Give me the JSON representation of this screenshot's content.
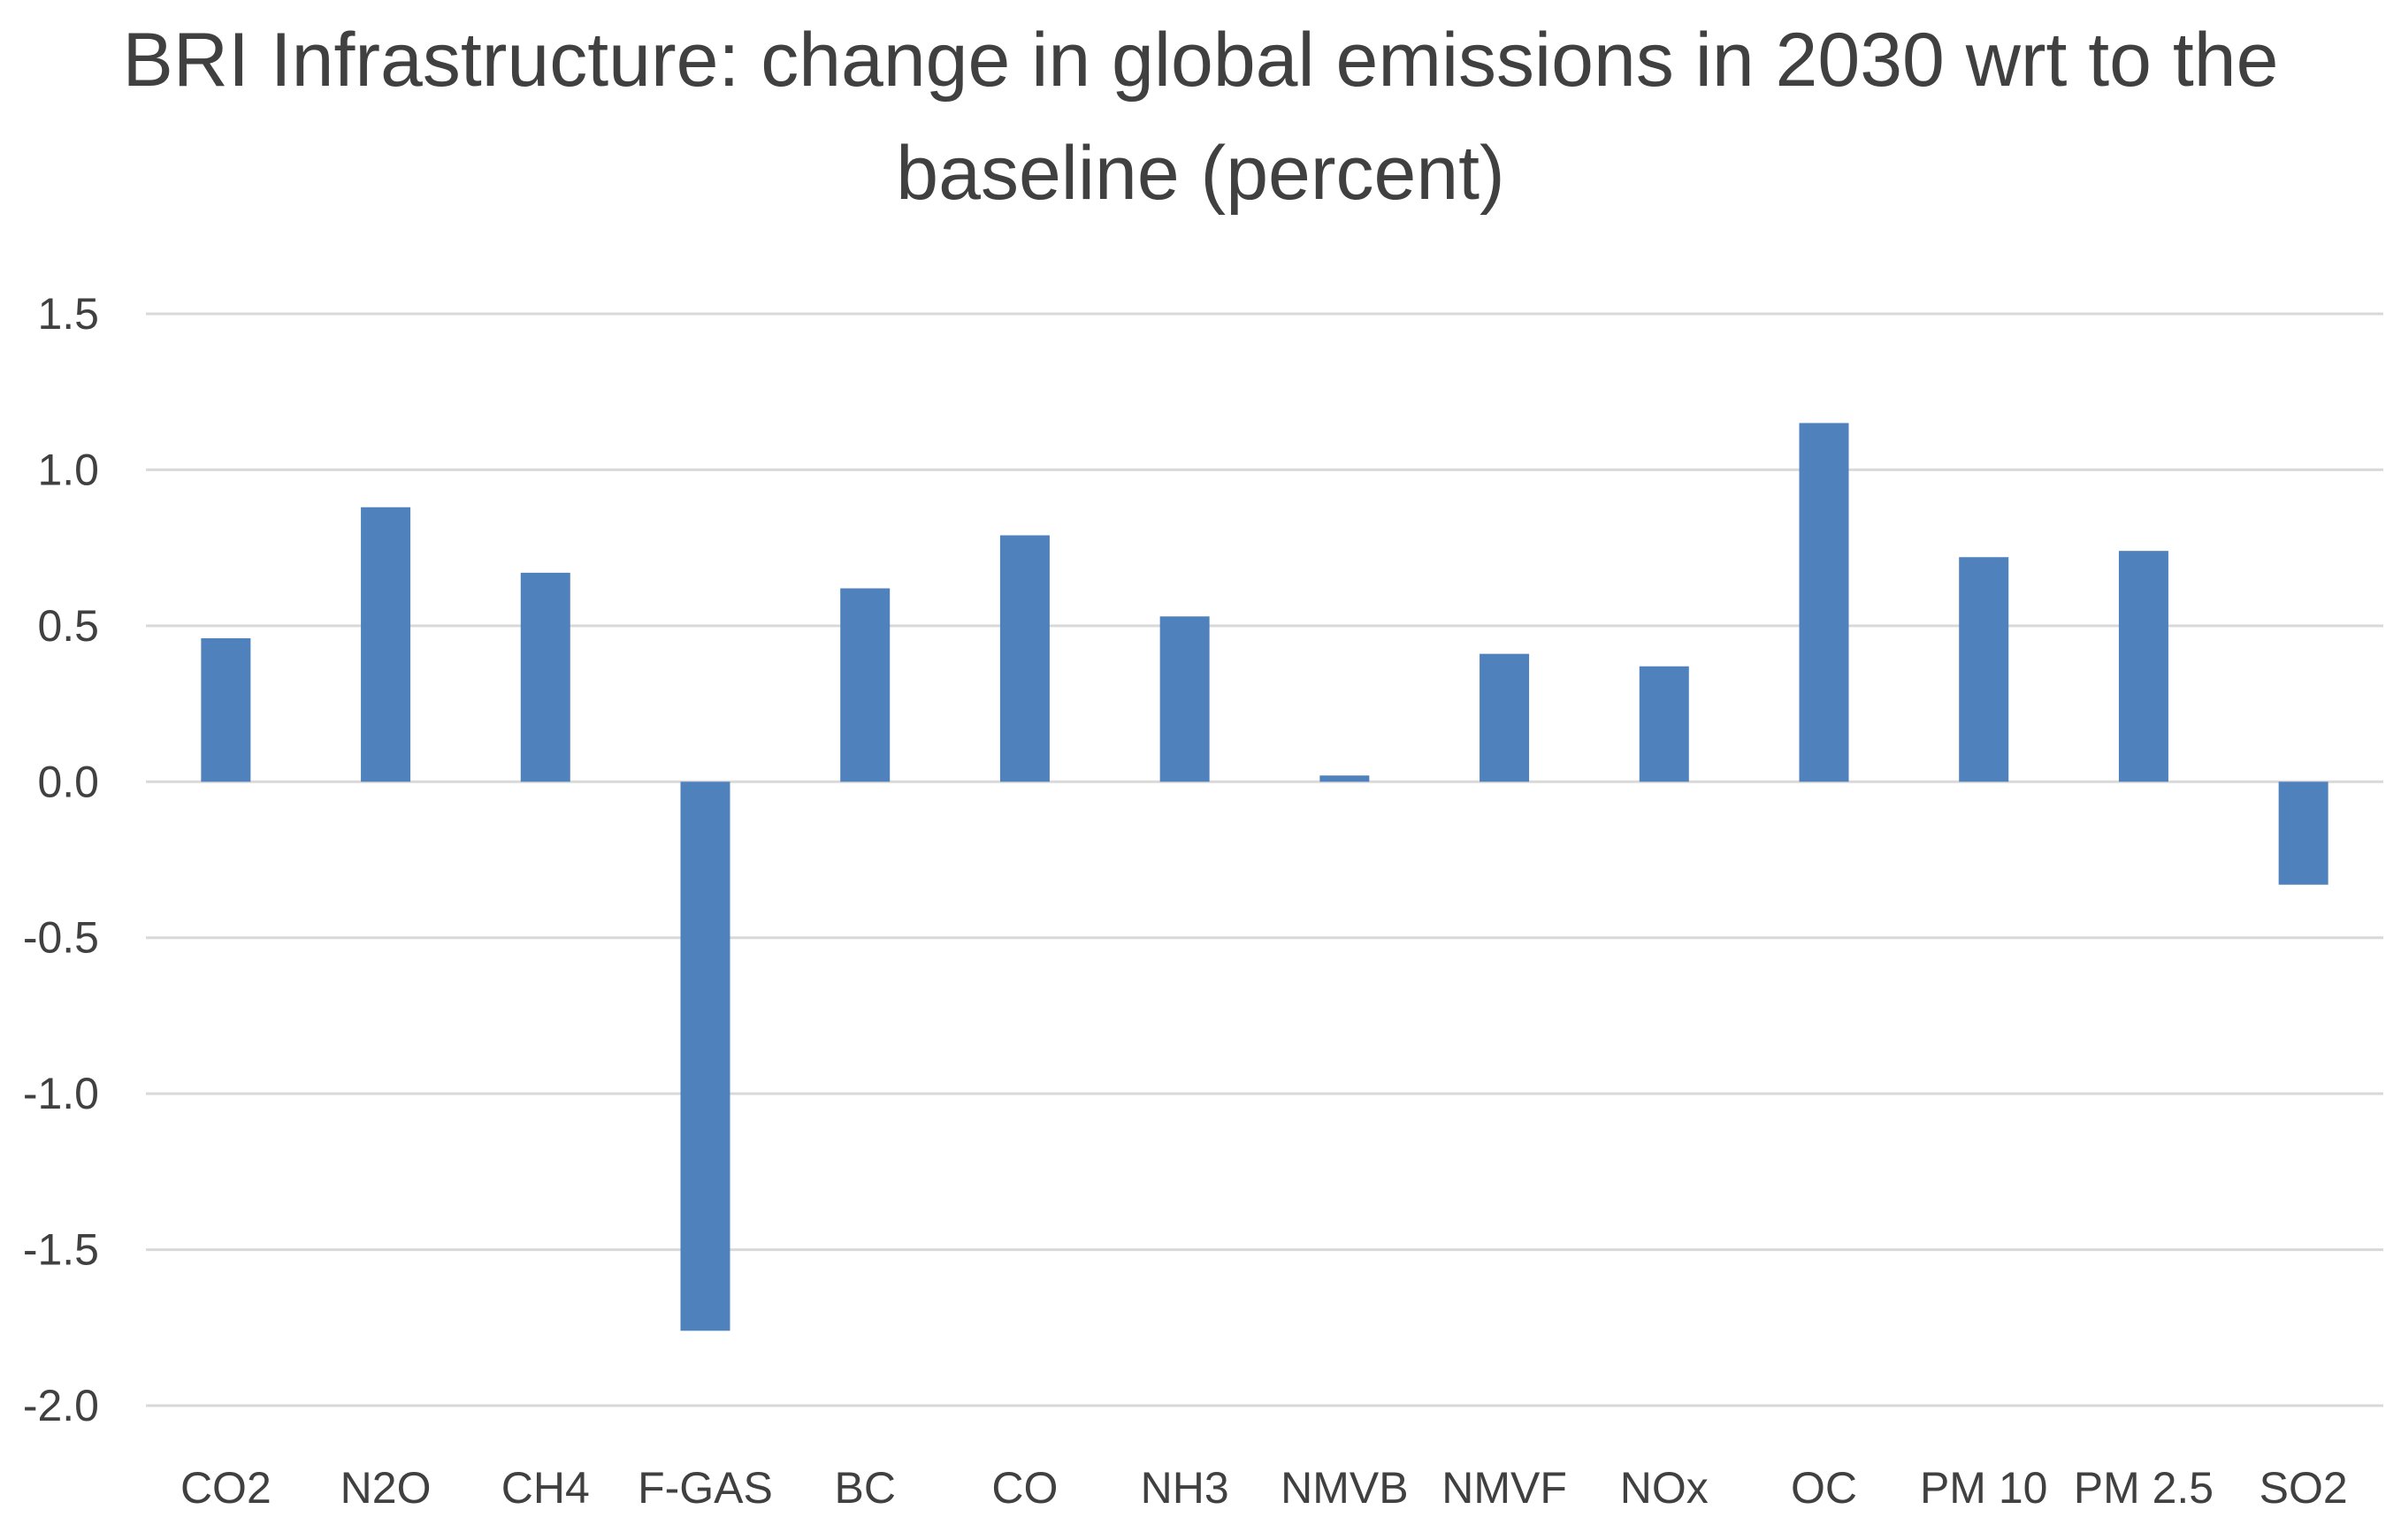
{
  "chart_data": {
    "type": "bar",
    "title_line1": "BRI Infrastructure: change in global emissions in 2030 wrt to the",
    "title_line2": "baseline (percent)",
    "categories": [
      "CO2",
      "N2O",
      "CH4",
      "F-GAS",
      "BC",
      "CO",
      "NH3",
      "NMVB",
      "NMVF",
      "NOx",
      "OC",
      "PM 10",
      "PM 2.5",
      "SO2"
    ],
    "values": [
      0.46,
      0.88,
      0.67,
      -1.76,
      0.62,
      0.79,
      0.53,
      0.02,
      0.41,
      0.37,
      1.15,
      0.72,
      0.74,
      -0.33
    ],
    "ylim": [
      -2.0,
      1.5
    ],
    "yticks": [
      1.5,
      1.0,
      0.5,
      0.0,
      -0.5,
      -1.0,
      -1.5,
      -2.0
    ],
    "ytick_labels": [
      "1.5",
      "1.0",
      "0.5",
      "0.0",
      "-0.5",
      "-1.0",
      "-1.5",
      "-2.0"
    ],
    "grid": true,
    "legend": "none",
    "colors": {
      "bar": "#4f81bd",
      "grid": "#d9d9d9",
      "text": "#404040"
    }
  }
}
